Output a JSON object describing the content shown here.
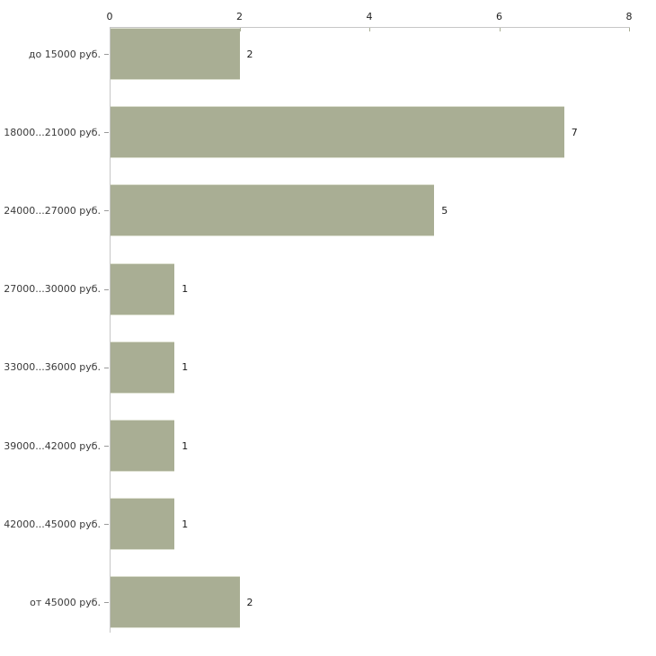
{
  "chart_data": {
    "type": "bar",
    "orientation": "horizontal",
    "title": "",
    "xlabel": "",
    "ylabel": "",
    "categories": [
      "до 15000 руб.",
      "18000...21000 руб.",
      "24000...27000 руб.",
      "27000...30000 руб.",
      "33000...36000 руб.",
      "39000...42000 руб.",
      "42000...45000 руб.",
      "от 45000 руб."
    ],
    "values": [
      2,
      7,
      5,
      1,
      1,
      1,
      1,
      2
    ],
    "value_labels": [
      "2",
      "7",
      "5",
      "1",
      "1",
      "1",
      "1",
      "2"
    ],
    "xlim": [
      0,
      8
    ],
    "xticks": [
      0,
      2,
      4,
      6,
      8
    ],
    "xtick_labels": [
      "0",
      "2",
      "4",
      "6",
      "8"
    ],
    "grid": false,
    "legend": false,
    "colors": {
      "bar_fill": "#a9ae94",
      "bar_edge_light": "#dde0d1",
      "axis_line": "#c6c6c6",
      "tick_mark": "#a9ae94",
      "tick_text": "#222222",
      "category_text": "#3a3a3a",
      "value_text": "#1a1a1a",
      "background": "#ffffff"
    }
  }
}
